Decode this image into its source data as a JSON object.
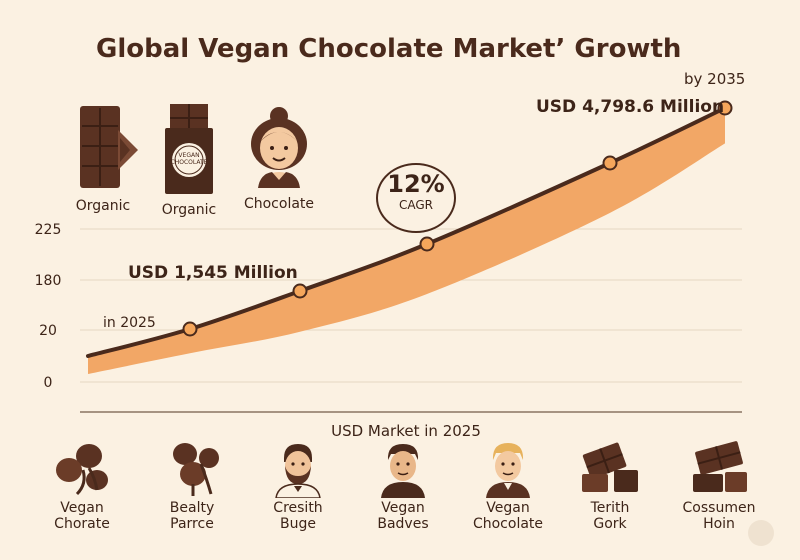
{
  "title": "Global Vegan Chocolate Market’ Growth",
  "top_icons": [
    {
      "icon": "chocolate-bar-icon",
      "label": "Organic"
    },
    {
      "icon": "vegan-chocolate-package-icon",
      "label": "Organic",
      "package_text": "VEGAN CHOCOLATE"
    },
    {
      "icon": "woman-avatar-icon",
      "label": "Chocolate"
    }
  ],
  "cagr": {
    "value": "12%",
    "label": "CAGR"
  },
  "bottom_icons": [
    {
      "icon": "cocoa-pods-icon",
      "label": "Vegan\nChorate"
    },
    {
      "icon": "cocoa-pods-icon",
      "label": "Bealty\nParrce"
    },
    {
      "icon": "bearded-man-avatar-icon",
      "label": "Cresith\nBuge"
    },
    {
      "icon": "man-avatar-icon",
      "label": "Vegan\nBadves"
    },
    {
      "icon": "blond-man-avatar-icon",
      "label": "Vegan\nChocolate"
    },
    {
      "icon": "chocolate-pieces-icon",
      "label": "Terith\nGork"
    },
    {
      "icon": "chocolate-pieces-icon",
      "label": "Cossumen\nHoin"
    }
  ],
  "colors": {
    "background": "#fbf1e2",
    "area_fill": "#f2a766",
    "line": "#4a2a1c",
    "marker_fill": "#f5a65b",
    "text": "#3d2418"
  },
  "chart_data": {
    "type": "line",
    "title": "Global Vegan Chocolate Market’ Growth",
    "xlabel": "USD Market in 2025",
    "ylabel": "",
    "y_tick_labels": [
      "0",
      "20",
      "180",
      "225"
    ],
    "grid": true,
    "series": [
      {
        "values": [
          0,
          20,
          58,
          105,
          170,
          254
        ]
      }
    ],
    "band_lower": [
      -5,
      2,
      18,
      55,
      130,
      200
    ],
    "annotations": [
      {
        "text": "in 2025",
        "point_index": 1
      },
      {
        "text": "USD 1,545 Million",
        "point_index": 2
      },
      {
        "text": "USD 4,798.6 Million",
        "point_index": 5
      },
      {
        "text": "by 2035",
        "point_index": 5
      }
    ]
  }
}
